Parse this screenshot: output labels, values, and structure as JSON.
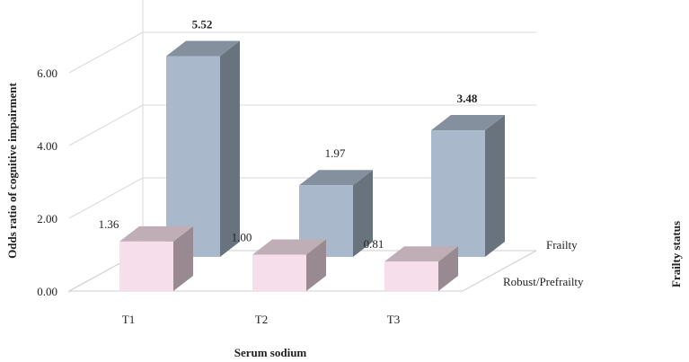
{
  "chart_data": {
    "type": "bar",
    "style": "3d-column",
    "categories": [
      "T1",
      "T2",
      "T3"
    ],
    "series": [
      {
        "name": "Robust/Prefrailty",
        "values": [
          1.36,
          1.0,
          0.81
        ],
        "labels": [
          "1.36",
          "1.00",
          "0.81"
        ],
        "bold": [
          false,
          false,
          false
        ],
        "color": "#f6dfea"
      },
      {
        "name": "Frailty",
        "values": [
          5.52,
          1.97,
          3.48
        ],
        "labels": [
          "5.52",
          "1.97",
          "3.48"
        ],
        "bold": [
          true,
          false,
          true
        ],
        "color": "#a9b9cb"
      }
    ],
    "yticks": [
      "0.00",
      "2.00",
      "4.00",
      "6.00"
    ],
    "ylim": [
      0,
      7
    ],
    "ylabel": "Odds ratio of cognitive impairment",
    "xlabel": "Serum sodium",
    "zlabel": "Frailty status",
    "grid": true
  }
}
